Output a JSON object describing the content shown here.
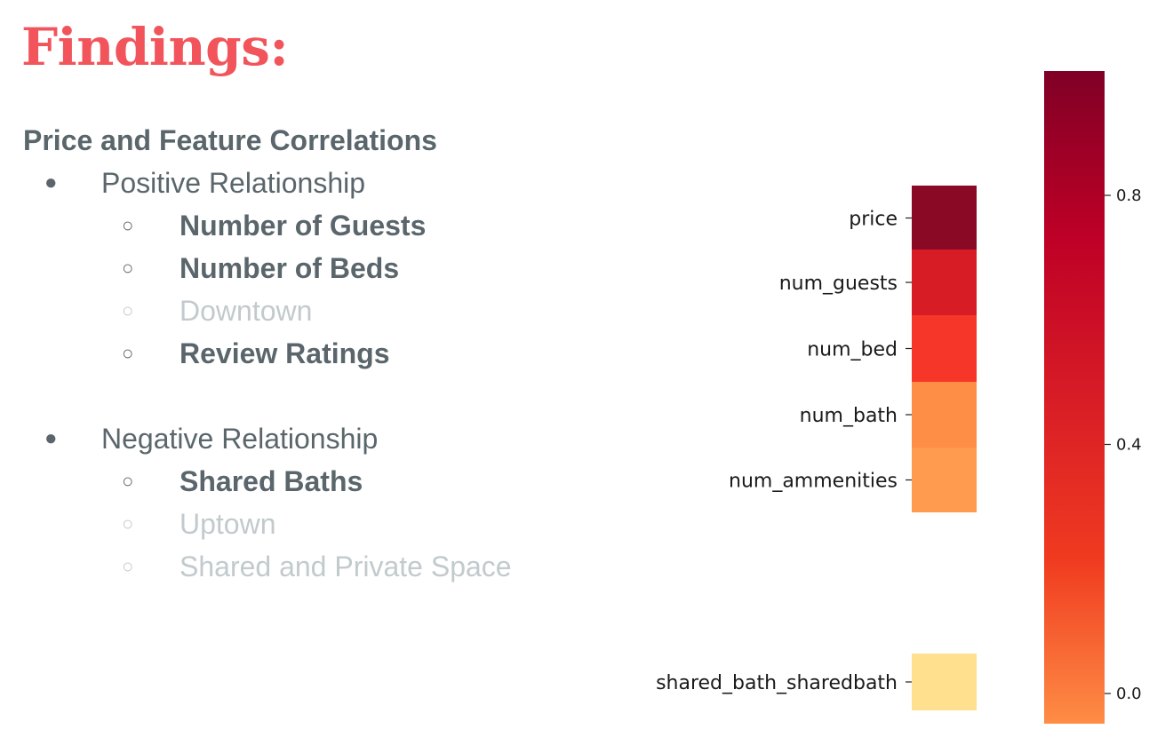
{
  "slide": {
    "title": "Findings:",
    "section_heading": "Price and Feature Correlations",
    "colors": {
      "title": "#f2545b",
      "text": "#5a666b",
      "muted": "#c2cacd"
    },
    "bullet_glyphs": {
      "level1": "●",
      "level2": "○"
    },
    "groups": [
      {
        "label": "Positive Relationship",
        "items": [
          {
            "text": "Number of Guests",
            "style": "bold"
          },
          {
            "text": "Number of Beds",
            "style": "bold"
          },
          {
            "text": "Downtown",
            "style": "muted"
          },
          {
            "text": "Review Ratings",
            "style": "bold"
          }
        ]
      },
      {
        "label": "Negative Relationship",
        "items": [
          {
            "text": "Shared Baths",
            "style": "bold"
          },
          {
            "text": "Uptown",
            "style": "muted"
          },
          {
            "text": "Shared and Private Space",
            "style": "muted"
          }
        ]
      }
    ]
  },
  "chart_data": {
    "type": "heatmap",
    "title": "",
    "rows": [
      {
        "label": "price",
        "value": 1.0,
        "color": "#8a0a26"
      },
      {
        "label": "num_guests",
        "value": 0.69,
        "color": "#d71c26"
      },
      {
        "label": "num_bed",
        "value": 0.57,
        "color": "#f53628"
      },
      {
        "label": "num_bath",
        "value": 0.25,
        "color": "#fe8d45"
      },
      {
        "label": "num_ammenities",
        "value": 0.2,
        "color": "#fe9b4e"
      },
      {
        "label": "shared_bath_sharedbath",
        "value": -0.1,
        "color": "#fee08e"
      }
    ],
    "colorbar": {
      "range": [
        0.0,
        1.0
      ],
      "ticks": [
        {
          "value": 0.8,
          "label": "0.8"
        },
        {
          "value": 0.4,
          "label": "0.4"
        },
        {
          "value": 0.0,
          "label": "0.0"
        }
      ],
      "colormap": "YlOrRd",
      "gradient_colors": [
        "#fe8d45",
        "#f03b20",
        "#d81c26",
        "#bd0026",
        "#800026"
      ]
    },
    "legend": "none",
    "grid": false
  }
}
